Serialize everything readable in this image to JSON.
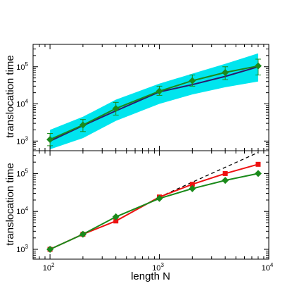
{
  "chart_data": [
    {
      "type": "line",
      "panel": "top",
      "xlabel": "",
      "ylabel": "translocation time",
      "x_scale": "log",
      "y_scale": "log",
      "xlim": [
        70,
        10000
      ],
      "ylim": [
        550,
        400000
      ],
      "grid": false,
      "x_ticks": [
        {
          "value": 100,
          "base": "10",
          "exp": "2"
        },
        {
          "value": 1000,
          "base": "10",
          "exp": "3"
        },
        {
          "value": 10000,
          "base": "10",
          "exp": "4"
        }
      ],
      "y_ticks": [
        {
          "value": 1000,
          "base": "10",
          "exp": "3"
        },
        {
          "value": 10000,
          "base": "10",
          "exp": "4"
        },
        {
          "value": 100000,
          "base": "10",
          "exp": "5"
        }
      ],
      "band": {
        "color": "#00e5ee",
        "x": [
          100,
          200,
          400,
          1000,
          2000,
          4000,
          8000
        ],
        "lower": [
          600,
          1200,
          3500,
          10000,
          18000,
          28000,
          40000
        ],
        "upper": [
          2000,
          4500,
          13000,
          35000,
          65000,
          120000,
          230000
        ]
      },
      "series": [
        {
          "color": "#2a1a6e",
          "marker": "none",
          "x": [
            100,
            200,
            400,
            1000,
            2000,
            4000,
            8000
          ],
          "y": [
            1000,
            2600,
            6500,
            21000,
            33000,
            55000,
            100000
          ]
        },
        {
          "color": "#1a8a1a",
          "marker": "diamond",
          "x": [
            100,
            200,
            400,
            1000,
            2000,
            4000,
            8000
          ],
          "y": [
            1100,
            2700,
            7500,
            22000,
            42000,
            70000,
            105000
          ],
          "err_low": [
            750,
            1800,
            5000,
            17000,
            30000,
            45000,
            60000
          ],
          "err_high": [
            1600,
            3800,
            11000,
            30000,
            60000,
            100000,
            160000
          ]
        }
      ]
    },
    {
      "type": "line",
      "panel": "bottom",
      "xlabel": "length N",
      "ylabel": "translocation time",
      "x_scale": "log",
      "y_scale": "log",
      "xlim": [
        70,
        10000
      ],
      "ylim": [
        550,
        400000
      ],
      "grid": false,
      "x_ticks": [
        {
          "value": 100,
          "base": "10",
          "exp": "2"
        },
        {
          "value": 1000,
          "base": "10",
          "exp": "3"
        },
        {
          "value": 10000,
          "base": "10",
          "exp": "4"
        }
      ],
      "y_ticks": [
        {
          "value": 1000,
          "base": "10",
          "exp": "3"
        },
        {
          "value": 10000,
          "base": "10",
          "exp": "4"
        },
        {
          "value": 100000,
          "base": "10",
          "exp": "5"
        }
      ],
      "series": [
        {
          "color": "#000000",
          "style": "dashed",
          "marker": "none",
          "x": [
            1000,
            8000
          ],
          "y": [
            24000,
            360000
          ]
        },
        {
          "color": "#ee1111",
          "marker": "square",
          "x": [
            100,
            200,
            400,
            1000,
            2000,
            4000,
            8000
          ],
          "y": [
            1000,
            2500,
            5600,
            24000,
            52000,
            100000,
            175000
          ]
        },
        {
          "color": "#1a8a1a",
          "marker": "diamond",
          "x": [
            100,
            200,
            400,
            1000,
            2000,
            4000,
            8000
          ],
          "y": [
            1000,
            2500,
            7200,
            22000,
            40000,
            66000,
            100000
          ]
        }
      ]
    }
  ]
}
